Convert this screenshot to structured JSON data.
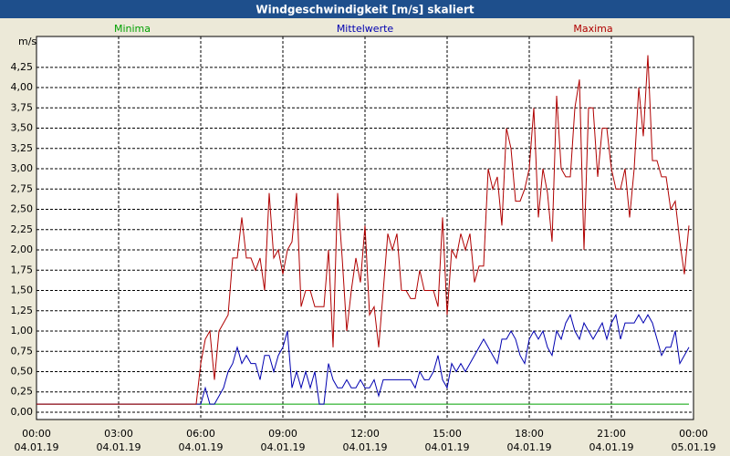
{
  "chart_data": {
    "type": "line",
    "title": "Windgeschwindigkeit [m/s] skaliert",
    "y_unit": "m/s",
    "x": [
      0,
      10,
      20,
      30,
      40,
      50,
      60,
      70,
      80,
      90,
      100,
      110,
      120,
      130,
      140,
      150,
      160,
      170,
      180,
      190,
      200,
      210,
      220,
      230,
      240,
      250,
      260,
      270,
      280,
      290,
      300,
      310,
      320,
      330,
      340,
      350,
      360,
      370,
      380,
      390,
      400,
      410,
      420,
      430,
      440,
      450,
      460,
      470,
      480,
      490,
      500,
      510,
      520,
      530,
      540,
      550,
      560,
      570,
      580,
      590,
      600,
      610,
      620,
      630,
      640,
      650,
      660,
      670,
      680,
      690,
      700,
      710,
      720,
      730,
      740,
      750,
      760,
      770,
      780,
      790,
      800,
      810,
      820,
      830,
      840,
      850,
      860,
      870,
      880,
      890,
      900,
      910,
      920,
      930,
      940,
      950,
      960,
      970,
      980,
      990,
      1000,
      1010,
      1020,
      1030,
      1040,
      1050,
      1060,
      1070,
      1080,
      1090,
      1100,
      1110,
      1120,
      1130,
      1140,
      1150,
      1160,
      1170,
      1180,
      1190,
      1200,
      1210,
      1220,
      1230,
      1240,
      1250,
      1260,
      1270,
      1280,
      1290,
      1300,
      1310,
      1320,
      1330,
      1340,
      1350,
      1360,
      1370,
      1380,
      1390,
      1400,
      1410,
      1420,
      1430
    ],
    "series": [
      {
        "name": "Minima",
        "color": "#00a000",
        "values": [
          0.1,
          0.1,
          0.1,
          0.1,
          0.1,
          0.1,
          0.1,
          0.1,
          0.1,
          0.1,
          0.1,
          0.1,
          0.1,
          0.1,
          0.1,
          0.1,
          0.1,
          0.1,
          0.1,
          0.1,
          0.1,
          0.1,
          0.1,
          0.1,
          0.1,
          0.1,
          0.1,
          0.1,
          0.1,
          0.1,
          0.1,
          0.1,
          0.1,
          0.1,
          0.1,
          0.1,
          0.1,
          0.1,
          0.1,
          0.1,
          0.1,
          0.1,
          0.1,
          0.1,
          0.1,
          0.1,
          0.1,
          0.1,
          0.1,
          0.1,
          0.1,
          0.1,
          0.1,
          0.1,
          0.1,
          0.1,
          0.1,
          0.1,
          0.1,
          0.1,
          0.1,
          0.1,
          0.1,
          0.1,
          0.1,
          0.1,
          0.1,
          0.1,
          0.1,
          0.1,
          0.1,
          0.1,
          0.1,
          0.1,
          0.1,
          0.1,
          0.1,
          0.1,
          0.1,
          0.1,
          0.1,
          0.1,
          0.1,
          0.1,
          0.1,
          0.1,
          0.1,
          0.1,
          0.1,
          0.1,
          0.1,
          0.1,
          0.1,
          0.1,
          0.1,
          0.1,
          0.1,
          0.1,
          0.1,
          0.1,
          0.1,
          0.1,
          0.1,
          0.1,
          0.1,
          0.1,
          0.1,
          0.1,
          0.1,
          0.1,
          0.1,
          0.1,
          0.1,
          0.1,
          0.1,
          0.1,
          0.1,
          0.1,
          0.1,
          0.1,
          0.1,
          0.1,
          0.1,
          0.1,
          0.1,
          0.1,
          0.1,
          0.1,
          0.1,
          0.1,
          0.1,
          0.1,
          0.1,
          0.1,
          0.1,
          0.1,
          0.1,
          0.1,
          0.1,
          0.1,
          0.1,
          0.1,
          0.1,
          0.1
        ]
      },
      {
        "name": "Mittelwerte",
        "color": "#0000b0",
        "values": [
          0.1,
          0.1,
          0.1,
          0.1,
          0.1,
          0.1,
          0.1,
          0.1,
          0.1,
          0.1,
          0.1,
          0.1,
          0.1,
          0.1,
          0.1,
          0.1,
          0.1,
          0.1,
          0.1,
          0.1,
          0.1,
          0.1,
          0.1,
          0.1,
          0.1,
          0.1,
          0.1,
          0.1,
          0.1,
          0.1,
          0.1,
          0.1,
          0.1,
          0.1,
          0.1,
          0.1,
          0.1,
          0.3,
          0.1,
          0.1,
          0.2,
          0.3,
          0.5,
          0.6,
          0.8,
          0.6,
          0.7,
          0.6,
          0.6,
          0.4,
          0.7,
          0.7,
          0.5,
          0.7,
          0.8,
          1.0,
          0.3,
          0.5,
          0.3,
          0.5,
          0.3,
          0.5,
          0.1,
          0.1,
          0.6,
          0.4,
          0.3,
          0.3,
          0.4,
          0.3,
          0.3,
          0.4,
          0.3,
          0.3,
          0.4,
          0.2,
          0.4,
          0.4,
          0.4,
          0.4,
          0.4,
          0.4,
          0.4,
          0.3,
          0.5,
          0.4,
          0.4,
          0.5,
          0.7,
          0.4,
          0.3,
          0.6,
          0.5,
          0.6,
          0.5,
          0.6,
          0.7,
          0.8,
          0.9,
          0.8,
          0.7,
          0.6,
          0.9,
          0.9,
          1.0,
          0.9,
          0.7,
          0.6,
          0.9,
          1.0,
          0.9,
          1.0,
          0.8,
          0.7,
          1.0,
          0.9,
          1.1,
          1.2,
          1.0,
          0.9,
          1.1,
          1.0,
          0.9,
          1.0,
          1.1,
          0.9,
          1.1,
          1.2,
          0.9,
          1.1,
          1.1,
          1.1,
          1.2,
          1.1,
          1.2,
          1.1,
          0.9,
          0.7,
          0.8,
          0.8,
          1.0,
          0.6,
          0.7,
          0.8
        ]
      },
      {
        "name": "Maxima",
        "color": "#b00000",
        "values": [
          0.1,
          0.1,
          0.1,
          0.1,
          0.1,
          0.1,
          0.1,
          0.1,
          0.1,
          0.1,
          0.1,
          0.1,
          0.1,
          0.1,
          0.1,
          0.1,
          0.1,
          0.1,
          0.1,
          0.1,
          0.1,
          0.1,
          0.1,
          0.1,
          0.1,
          0.1,
          0.1,
          0.1,
          0.1,
          0.1,
          0.1,
          0.1,
          0.1,
          0.1,
          0.1,
          0.1,
          0.6,
          0.9,
          1.0,
          0.4,
          1.0,
          1.1,
          1.2,
          1.9,
          1.9,
          2.4,
          1.9,
          1.9,
          1.75,
          1.9,
          1.5,
          2.7,
          1.9,
          2.0,
          1.7,
          2.0,
          2.1,
          2.7,
          1.3,
          1.5,
          1.5,
          1.3,
          1.3,
          1.3,
          2.0,
          0.8,
          2.7,
          1.9,
          1.0,
          1.5,
          1.9,
          1.6,
          2.3,
          1.2,
          1.3,
          0.8,
          1.5,
          2.2,
          2.0,
          2.2,
          1.5,
          1.5,
          1.4,
          1.4,
          1.75,
          1.5,
          1.5,
          1.5,
          1.3,
          2.4,
          1.2,
          2.0,
          1.9,
          2.2,
          2.0,
          2.2,
          1.6,
          1.8,
          1.8,
          3.0,
          2.75,
          2.9,
          2.3,
          3.5,
          3.25,
          2.6,
          2.6,
          2.75,
          3.0,
          3.75,
          2.4,
          3.0,
          2.7,
          2.1,
          3.9,
          3.0,
          2.9,
          2.9,
          3.75,
          4.1,
          2.0,
          3.75,
          3.75,
          2.9,
          3.5,
          3.5,
          3.0,
          2.75,
          2.75,
          3.0,
          2.4,
          3.0,
          4.0,
          3.4,
          4.4,
          3.1,
          3.1,
          2.9,
          2.9,
          2.5,
          2.6,
          2.1,
          1.7,
          2.3
        ]
      }
    ],
    "xlim": [
      0,
      1440
    ],
    "xticks": [
      {
        "value": 0,
        "label": "00:00"
      },
      {
        "value": 180,
        "label": "03:00"
      },
      {
        "value": 360,
        "label": "06:00"
      },
      {
        "value": 540,
        "label": "09:00"
      },
      {
        "value": 720,
        "label": "12:00"
      },
      {
        "value": 900,
        "label": "15:00"
      },
      {
        "value": 1080,
        "label": "18:00"
      },
      {
        "value": 1260,
        "label": "21:00"
      },
      {
        "value": 1440,
        "label": "00:00"
      }
    ],
    "xtick_dates": [
      "04.01.19",
      "04.01.19",
      "04.01.19",
      "04.01.19",
      "04.01.19",
      "04.01.19",
      "04.01.19",
      "04.01.19",
      "05.01.19"
    ],
    "ylim": [
      -0.09,
      4.63
    ],
    "yticks": [
      {
        "value": 0,
        "label": "0,00"
      },
      {
        "value": 0.25,
        "label": "0,25"
      },
      {
        "value": 0.5,
        "label": "0,50"
      },
      {
        "value": 0.75,
        "label": "0,75"
      },
      {
        "value": 1,
        "label": "1,00"
      },
      {
        "value": 1.25,
        "label": "1,25"
      },
      {
        "value": 1.5,
        "label": "1,50"
      },
      {
        "value": 1.75,
        "label": "1,75"
      },
      {
        "value": 2,
        "label": "2,00"
      },
      {
        "value": 2.25,
        "label": "2,25"
      },
      {
        "value": 2.5,
        "label": "2,50"
      },
      {
        "value": 2.75,
        "label": "2,75"
      },
      {
        "value": 3,
        "label": "3,00"
      },
      {
        "value": 3.25,
        "label": "3,25"
      },
      {
        "value": 3.5,
        "label": "3,50"
      },
      {
        "value": 3.75,
        "label": "3,75"
      },
      {
        "value": 4,
        "label": "4,00"
      },
      {
        "value": 4.25,
        "label": "4,25"
      }
    ],
    "grid": true
  }
}
